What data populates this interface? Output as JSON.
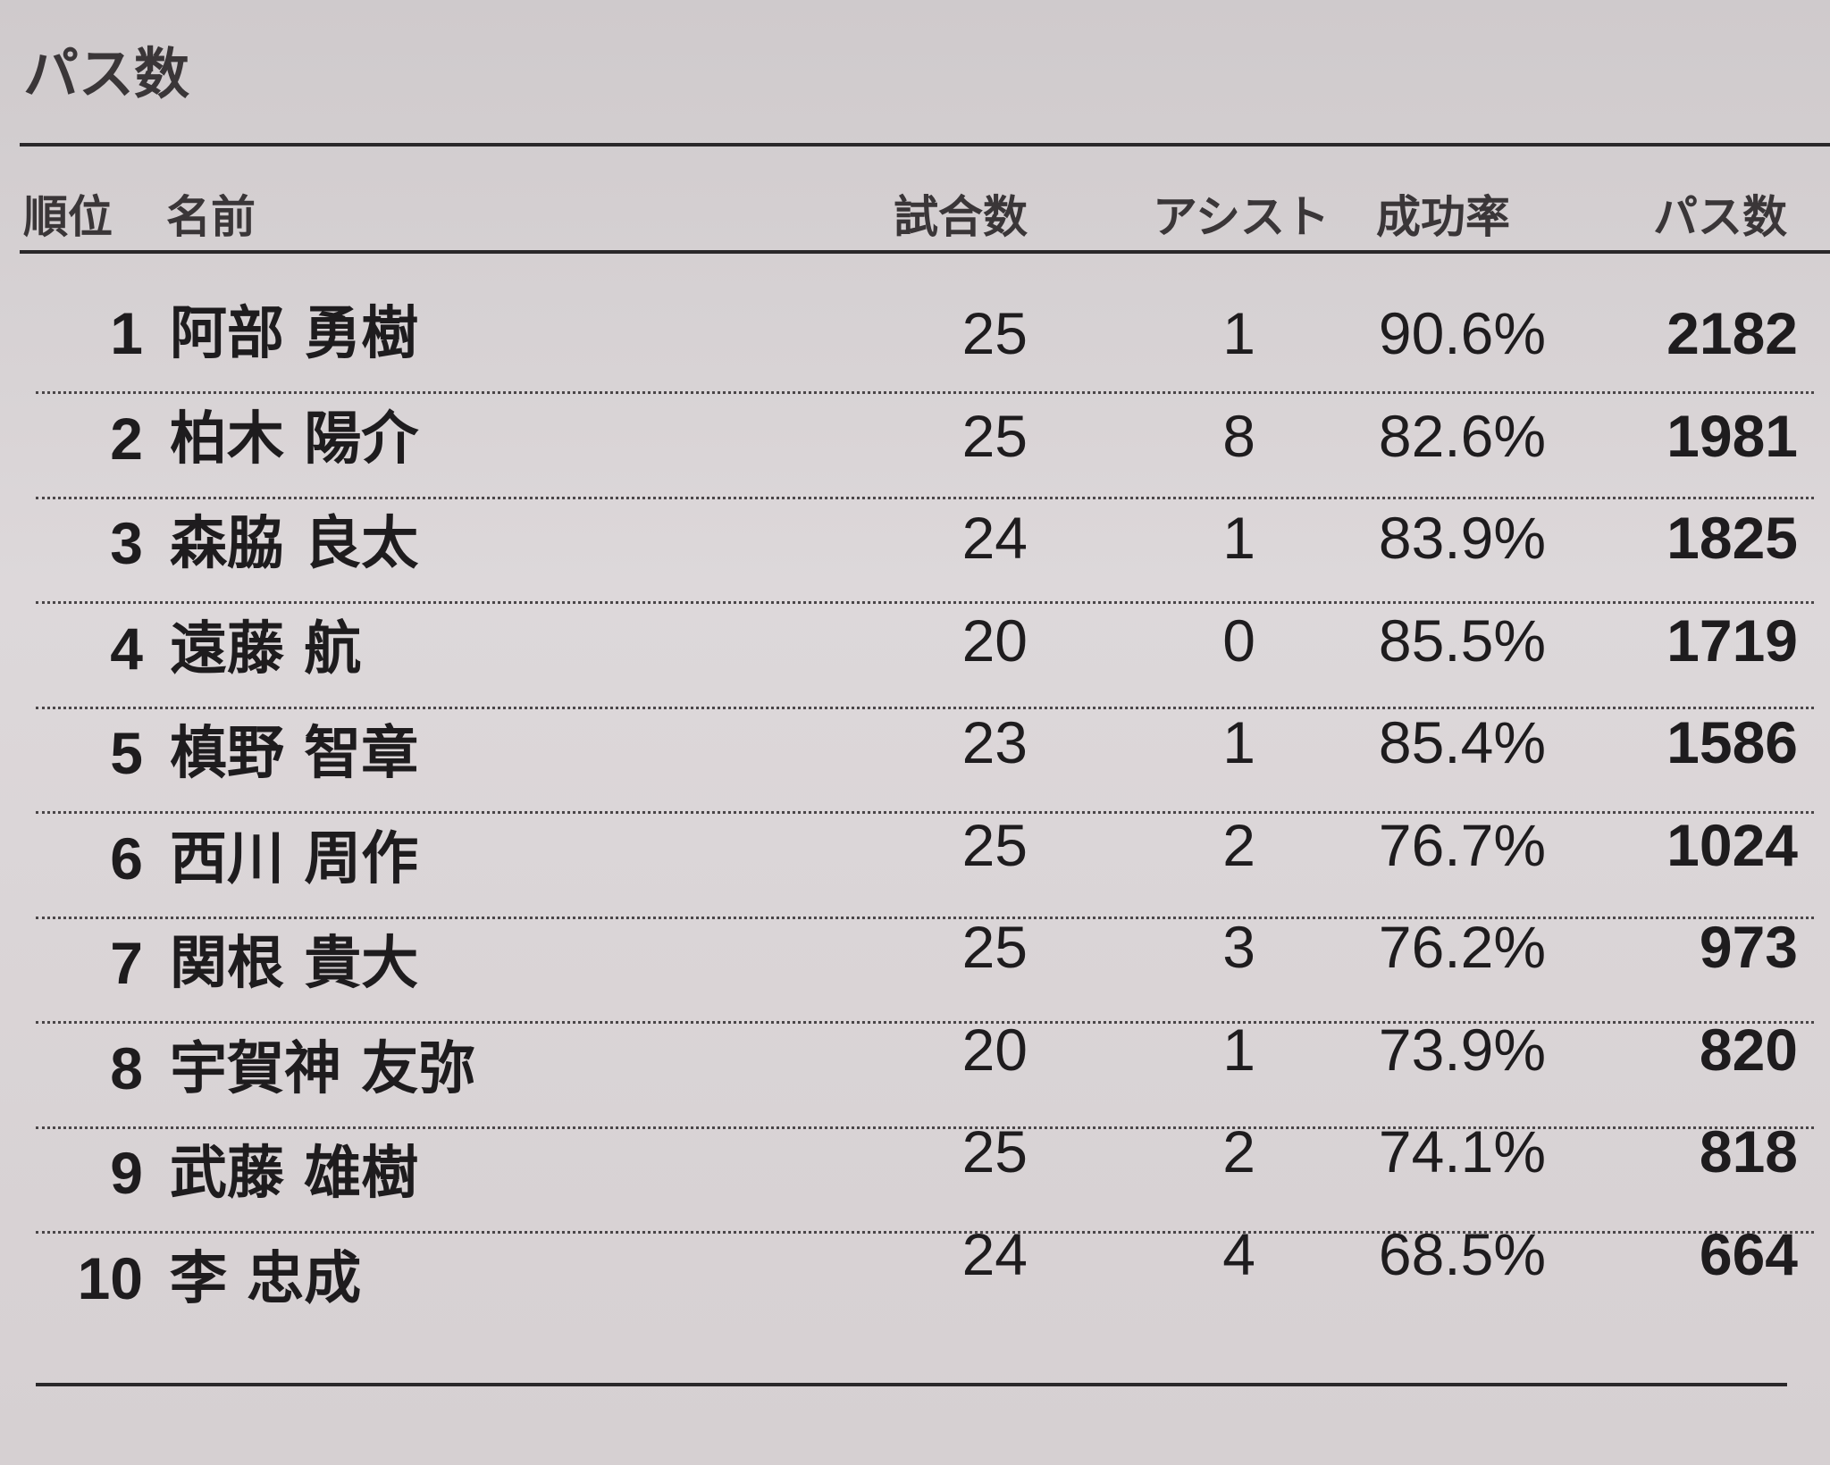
{
  "title": "パス数",
  "table": {
    "headers": [
      "順位",
      "名前",
      "試合数",
      "アシスト",
      "成功率",
      "パス数"
    ],
    "rows": [
      [
        "1",
        "阿部 勇樹",
        "25",
        "1",
        "90.6%",
        "2182"
      ],
      [
        "2",
        "柏木 陽介",
        "25",
        "8",
        "82.6%",
        "1981"
      ],
      [
        "3",
        "森脇 良太",
        "24",
        "1",
        "83.9%",
        "1825"
      ],
      [
        "4",
        "遠藤 航",
        "20",
        "0",
        "85.5%",
        "1719"
      ],
      [
        "5",
        "槙野 智章",
        "23",
        "1",
        "85.4%",
        "1586"
      ],
      [
        "6",
        "西川 周作",
        "25",
        "2",
        "76.7%",
        "1024"
      ],
      [
        "7",
        "関根 貴大",
        "25",
        "3",
        "76.2%",
        "973"
      ],
      [
        "8",
        "宇賀神 友弥",
        "20",
        "1",
        "73.9%",
        "820"
      ],
      [
        "9",
        "武藤 雄樹",
        "25",
        "2",
        "74.1%",
        "818"
      ],
      [
        "10",
        "李 忠成",
        "24",
        "4",
        "68.5%",
        "664"
      ]
    ]
  }
}
